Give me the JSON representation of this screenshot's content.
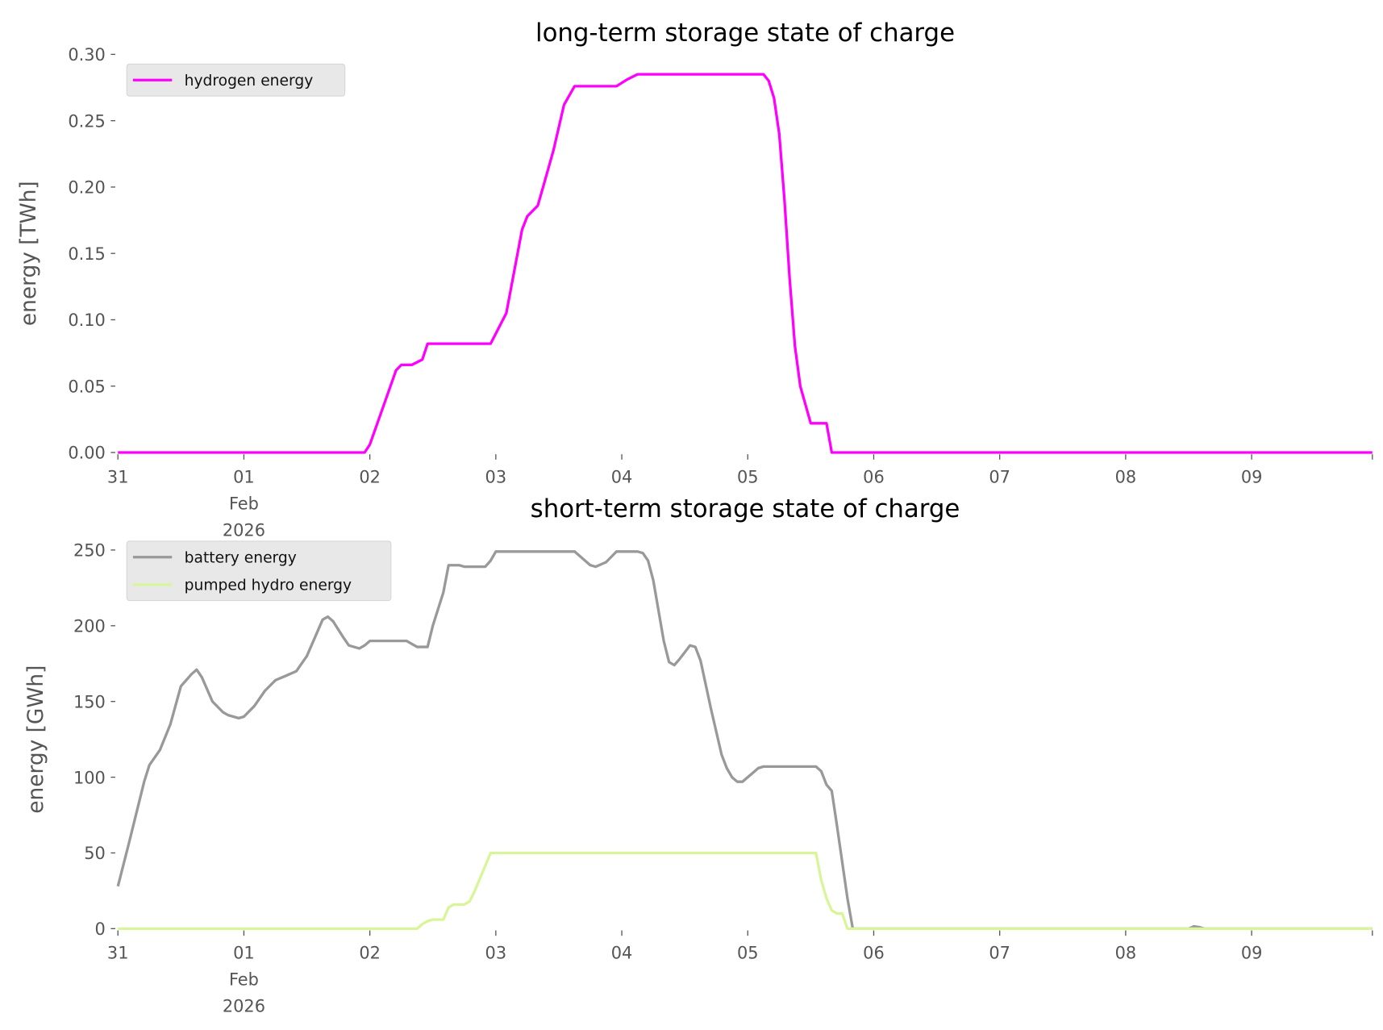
{
  "chart_data": [
    {
      "type": "line",
      "title": "long-term storage state of charge",
      "ylabel": "energy [TWh]",
      "xlabel": "",
      "xlim": [
        "2026-01-31 00:00",
        "2026-02-09 23:00"
      ],
      "ylim": [
        0,
        0.3
      ],
      "yticks": [
        "0.00",
        "0.05",
        "0.10",
        "0.15",
        "0.20",
        "0.25",
        "0.30"
      ],
      "xticks": [
        {
          "date": "2026-01-31 00:00",
          "label": [
            "31"
          ]
        },
        {
          "date": "2026-02-01 00:00",
          "label": [
            "01",
            "Feb",
            "2026"
          ]
        },
        {
          "date": "2026-02-02 00:00",
          "label": [
            "02"
          ]
        },
        {
          "date": "2026-02-03 00:00",
          "label": [
            "03"
          ]
        },
        {
          "date": "2026-02-04 00:00",
          "label": [
            "04"
          ]
        },
        {
          "date": "2026-02-05 00:00",
          "label": [
            "05"
          ]
        },
        {
          "date": "2026-02-06 00:00",
          "label": [
            "06"
          ]
        },
        {
          "date": "2026-02-07 00:00",
          "label": [
            "07"
          ]
        },
        {
          "date": "2026-02-08 00:00",
          "label": [
            "08"
          ]
        },
        {
          "date": "2026-02-09 00:00",
          "label": [
            "09"
          ]
        }
      ],
      "grid": false,
      "legend_placement": "top-left",
      "series": [
        {
          "name": "hydrogen energy",
          "color": "#ff00ff",
          "points": [
            [
              "2026-01-31 00:00",
              0
            ],
            [
              "2026-02-01 23:00",
              0
            ],
            [
              "2026-02-02 00:00",
              0.006
            ],
            [
              "2026-02-02 05:00",
              0.062
            ],
            [
              "2026-02-02 06:00",
              0.066
            ],
            [
              "2026-02-02 08:00",
              0.066
            ],
            [
              "2026-02-02 10:00",
              0.07
            ],
            [
              "2026-02-02 11:00",
              0.082
            ],
            [
              "2026-02-02 23:00",
              0.082
            ],
            [
              "2026-02-03 02:00",
              0.105
            ],
            [
              "2026-02-03 05:00",
              0.168
            ],
            [
              "2026-02-03 06:00",
              0.178
            ],
            [
              "2026-02-03 08:00",
              0.186
            ],
            [
              "2026-02-03 09:00",
              0.2
            ],
            [
              "2026-02-03 11:00",
              0.228
            ],
            [
              "2026-02-03 13:00",
              0.262
            ],
            [
              "2026-02-03 15:00",
              0.276
            ],
            [
              "2026-02-03 23:00",
              0.276
            ],
            [
              "2026-02-04 01:00",
              0.281
            ],
            [
              "2026-02-04 03:00",
              0.285
            ],
            [
              "2026-02-05 03:00",
              0.285
            ],
            [
              "2026-02-05 04:00",
              0.28
            ],
            [
              "2026-02-05 05:00",
              0.267
            ],
            [
              "2026-02-05 06:00",
              0.24
            ],
            [
              "2026-02-05 07:00",
              0.19
            ],
            [
              "2026-02-05 08:00",
              0.13
            ],
            [
              "2026-02-05 09:00",
              0.08
            ],
            [
              "2026-02-05 10:00",
              0.05
            ],
            [
              "2026-02-05 12:00",
              0.022
            ],
            [
              "2026-02-05 15:00",
              0.022
            ],
            [
              "2026-02-05 16:00",
              0
            ],
            [
              "2026-02-09 23:00",
              0
            ]
          ]
        }
      ]
    },
    {
      "type": "line",
      "title": "short-term storage state of charge",
      "ylabel": "energy [GWh]",
      "xlabel": "",
      "xlim": [
        "2026-01-31 00:00",
        "2026-02-09 23:00"
      ],
      "ylim": [
        0,
        250
      ],
      "yticks": [
        "0",
        "50",
        "100",
        "150",
        "200",
        "250"
      ],
      "xticks": [
        {
          "date": "2026-01-31 00:00",
          "label": [
            "31"
          ]
        },
        {
          "date": "2026-02-01 00:00",
          "label": [
            "01",
            "Feb",
            "2026"
          ]
        },
        {
          "date": "2026-02-02 00:00",
          "label": [
            "02"
          ]
        },
        {
          "date": "2026-02-03 00:00",
          "label": [
            "03"
          ]
        },
        {
          "date": "2026-02-04 00:00",
          "label": [
            "04"
          ]
        },
        {
          "date": "2026-02-05 00:00",
          "label": [
            "05"
          ]
        },
        {
          "date": "2026-02-06 00:00",
          "label": [
            "06"
          ]
        },
        {
          "date": "2026-02-07 00:00",
          "label": [
            "07"
          ]
        },
        {
          "date": "2026-02-08 00:00",
          "label": [
            "08"
          ]
        },
        {
          "date": "2026-02-09 00:00",
          "label": [
            "09"
          ]
        }
      ],
      "grid": false,
      "legend_placement": "top-left",
      "series": [
        {
          "name": "battery energy",
          "color": "#999999",
          "points": [
            [
              "2026-01-31 00:00",
              28
            ],
            [
              "2026-01-31 02:00",
              55
            ],
            [
              "2026-01-31 05:00",
              97
            ],
            [
              "2026-01-31 06:00",
              108
            ],
            [
              "2026-01-31 08:00",
              118
            ],
            [
              "2026-01-31 10:00",
              135
            ],
            [
              "2026-01-31 12:00",
              160
            ],
            [
              "2026-01-31 14:00",
              168
            ],
            [
              "2026-01-31 15:00",
              171
            ],
            [
              "2026-01-31 16:00",
              166
            ],
            [
              "2026-01-31 18:00",
              150
            ],
            [
              "2026-01-31 20:00",
              143
            ],
            [
              "2026-01-31 21:00",
              141
            ],
            [
              "2026-01-31 23:00",
              139
            ],
            [
              "2026-02-01 00:00",
              140
            ],
            [
              "2026-02-01 02:00",
              147
            ],
            [
              "2026-02-01 04:00",
              157
            ],
            [
              "2026-02-01 06:00",
              164
            ],
            [
              "2026-02-01 08:00",
              167
            ],
            [
              "2026-02-01 10:00",
              170
            ],
            [
              "2026-02-01 12:00",
              180
            ],
            [
              "2026-02-01 14:00",
              196
            ],
            [
              "2026-02-01 15:00",
              204
            ],
            [
              "2026-02-01 16:00",
              206
            ],
            [
              "2026-02-01 17:00",
              203
            ],
            [
              "2026-02-01 19:00",
              192
            ],
            [
              "2026-02-01 20:00",
              187
            ],
            [
              "2026-02-01 22:00",
              185
            ],
            [
              "2026-02-01 23:00",
              187
            ],
            [
              "2026-02-02 00:00",
              190
            ],
            [
              "2026-02-02 07:00",
              190
            ],
            [
              "2026-02-02 08:00",
              188
            ],
            [
              "2026-02-02 09:00",
              186
            ],
            [
              "2026-02-02 11:00",
              186
            ],
            [
              "2026-02-02 12:00",
              200
            ],
            [
              "2026-02-02 14:00",
              222
            ],
            [
              "2026-02-02 15:00",
              240
            ],
            [
              "2026-02-02 17:00",
              240
            ],
            [
              "2026-02-02 18:00",
              239
            ],
            [
              "2026-02-02 22:00",
              239
            ],
            [
              "2026-02-02 23:00",
              243
            ],
            [
              "2026-02-03 00:00",
              249
            ],
            [
              "2026-02-03 15:00",
              249
            ],
            [
              "2026-02-03 16:00",
              246
            ],
            [
              "2026-02-03 18:00",
              240
            ],
            [
              "2026-02-03 19:00",
              239
            ],
            [
              "2026-02-03 21:00",
              242
            ],
            [
              "2026-02-03 23:00",
              249
            ],
            [
              "2026-02-04 03:00",
              249
            ],
            [
              "2026-02-04 04:00",
              248
            ],
            [
              "2026-02-04 05:00",
              243
            ],
            [
              "2026-02-04 06:00",
              230
            ],
            [
              "2026-02-04 08:00",
              190
            ],
            [
              "2026-02-04 09:00",
              176
            ],
            [
              "2026-02-04 10:00",
              174
            ],
            [
              "2026-02-04 11:00",
              178
            ],
            [
              "2026-02-04 13:00",
              187
            ],
            [
              "2026-02-04 14:00",
              186
            ],
            [
              "2026-02-04 15:00",
              177
            ],
            [
              "2026-02-04 17:00",
              145
            ],
            [
              "2026-02-04 19:00",
              115
            ],
            [
              "2026-02-04 20:00",
              106
            ],
            [
              "2026-02-04 21:00",
              100
            ],
            [
              "2026-02-04 22:00",
              97
            ],
            [
              "2026-02-04 23:00",
              97
            ],
            [
              "2026-02-05 01:00",
              103
            ],
            [
              "2026-02-05 02:00",
              106
            ],
            [
              "2026-02-05 03:00",
              107
            ],
            [
              "2026-02-05 13:00",
              107
            ],
            [
              "2026-02-05 14:00",
              104
            ],
            [
              "2026-02-05 15:00",
              95
            ],
            [
              "2026-02-05 16:00",
              91
            ],
            [
              "2026-02-05 17:00",
              68
            ],
            [
              "2026-02-05 19:00",
              20
            ],
            [
              "2026-02-05 20:00",
              0
            ],
            [
              "2026-02-08 12:00",
              0
            ],
            [
              "2026-02-08 13:00",
              1.5
            ],
            [
              "2026-02-08 14:00",
              1
            ],
            [
              "2026-02-08 15:00",
              0
            ],
            [
              "2026-02-09 23:00",
              0
            ]
          ]
        },
        {
          "name": "pumped hydro energy",
          "color": "#d9f59a",
          "points": [
            [
              "2026-01-31 00:00",
              0
            ],
            [
              "2026-02-02 09:00",
              0
            ],
            [
              "2026-02-02 10:00",
              3
            ],
            [
              "2026-02-02 11:00",
              5
            ],
            [
              "2026-02-02 12:00",
              6
            ],
            [
              "2026-02-02 14:00",
              6
            ],
            [
              "2026-02-02 15:00",
              14
            ],
            [
              "2026-02-02 16:00",
              16
            ],
            [
              "2026-02-02 18:00",
              16
            ],
            [
              "2026-02-02 19:00",
              18
            ],
            [
              "2026-02-02 20:00",
              25
            ],
            [
              "2026-02-02 23:00",
              50
            ],
            [
              "2026-02-05 13:00",
              50
            ],
            [
              "2026-02-05 14:00",
              32
            ],
            [
              "2026-02-05 15:00",
              20
            ],
            [
              "2026-02-05 16:00",
              12
            ],
            [
              "2026-02-05 17:00",
              10
            ],
            [
              "2026-02-05 18:00",
              10
            ],
            [
              "2026-02-05 19:00",
              0
            ],
            [
              "2026-02-09 23:00",
              0
            ]
          ]
        }
      ]
    }
  ]
}
